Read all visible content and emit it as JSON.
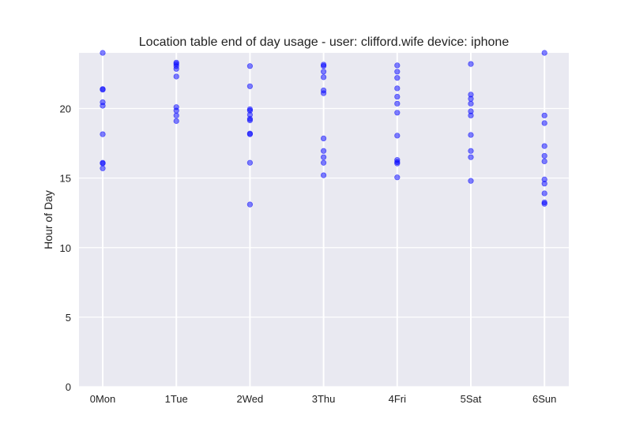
{
  "chart_data": {
    "type": "scatter",
    "title": "Location table end of day usage -  user: clifford.wife device: iphone",
    "xlabel": "",
    "ylabel": "Hour of Day",
    "ylim": [
      0,
      24
    ],
    "yticks": [
      0,
      5,
      10,
      15,
      20
    ],
    "categories": [
      "0Mon",
      "1Tue",
      "2Wed",
      "3Thu",
      "4Fri",
      "5Sat",
      "6Sun"
    ],
    "grid": true,
    "point_color": "#0000ff",
    "point_opacity": 0.5,
    "background_color": "#e9e9f1",
    "grid_color": "#ffffff",
    "points": [
      {
        "x": 0,
        "y": 24.0
      },
      {
        "x": 0,
        "y": 21.4
      },
      {
        "x": 0,
        "y": 21.35
      },
      {
        "x": 0,
        "y": 20.45
      },
      {
        "x": 0,
        "y": 20.2
      },
      {
        "x": 0,
        "y": 18.15
      },
      {
        "x": 0,
        "y": 16.1
      },
      {
        "x": 0,
        "y": 16.05
      },
      {
        "x": 0,
        "y": 15.7
      },
      {
        "x": 1,
        "y": 23.3
      },
      {
        "x": 1,
        "y": 23.2
      },
      {
        "x": 1,
        "y": 23.05
      },
      {
        "x": 1,
        "y": 22.85
      },
      {
        "x": 1,
        "y": 22.3
      },
      {
        "x": 1,
        "y": 20.1
      },
      {
        "x": 1,
        "y": 19.85
      },
      {
        "x": 1,
        "y": 19.5
      },
      {
        "x": 1,
        "y": 19.1
      },
      {
        "x": 2,
        "y": 23.05
      },
      {
        "x": 2,
        "y": 21.6
      },
      {
        "x": 2,
        "y": 19.95
      },
      {
        "x": 2,
        "y": 19.85
      },
      {
        "x": 2,
        "y": 19.55
      },
      {
        "x": 2,
        "y": 19.25
      },
      {
        "x": 2,
        "y": 19.15
      },
      {
        "x": 2,
        "y": 18.2
      },
      {
        "x": 2,
        "y": 18.15
      },
      {
        "x": 2,
        "y": 16.1
      },
      {
        "x": 2,
        "y": 13.1
      },
      {
        "x": 3,
        "y": 23.15
      },
      {
        "x": 3,
        "y": 23.05
      },
      {
        "x": 3,
        "y": 22.65
      },
      {
        "x": 3,
        "y": 22.25
      },
      {
        "x": 3,
        "y": 21.3
      },
      {
        "x": 3,
        "y": 21.1
      },
      {
        "x": 3,
        "y": 17.85
      },
      {
        "x": 3,
        "y": 16.95
      },
      {
        "x": 3,
        "y": 16.5
      },
      {
        "x": 3,
        "y": 16.1
      },
      {
        "x": 3,
        "y": 15.2
      },
      {
        "x": 4,
        "y": 23.1
      },
      {
        "x": 4,
        "y": 22.65
      },
      {
        "x": 4,
        "y": 22.2
      },
      {
        "x": 4,
        "y": 21.45
      },
      {
        "x": 4,
        "y": 20.85
      },
      {
        "x": 4,
        "y": 20.35
      },
      {
        "x": 4,
        "y": 19.7
      },
      {
        "x": 4,
        "y": 18.05
      },
      {
        "x": 4,
        "y": 16.3
      },
      {
        "x": 4,
        "y": 16.15
      },
      {
        "x": 4,
        "y": 16.05
      },
      {
        "x": 4,
        "y": 15.05
      },
      {
        "x": 5,
        "y": 23.2
      },
      {
        "x": 5,
        "y": 21.0
      },
      {
        "x": 5,
        "y": 20.7
      },
      {
        "x": 5,
        "y": 20.35
      },
      {
        "x": 5,
        "y": 19.8
      },
      {
        "x": 5,
        "y": 19.5
      },
      {
        "x": 5,
        "y": 18.1
      },
      {
        "x": 5,
        "y": 16.95
      },
      {
        "x": 5,
        "y": 16.5
      },
      {
        "x": 5,
        "y": 14.8
      },
      {
        "x": 6,
        "y": 24.0
      },
      {
        "x": 6,
        "y": 19.5
      },
      {
        "x": 6,
        "y": 18.95
      },
      {
        "x": 6,
        "y": 17.3
      },
      {
        "x": 6,
        "y": 16.6
      },
      {
        "x": 6,
        "y": 16.2
      },
      {
        "x": 6,
        "y": 14.9
      },
      {
        "x": 6,
        "y": 14.6
      },
      {
        "x": 6,
        "y": 13.9
      },
      {
        "x": 6,
        "y": 13.25
      },
      {
        "x": 6,
        "y": 13.15
      }
    ]
  }
}
